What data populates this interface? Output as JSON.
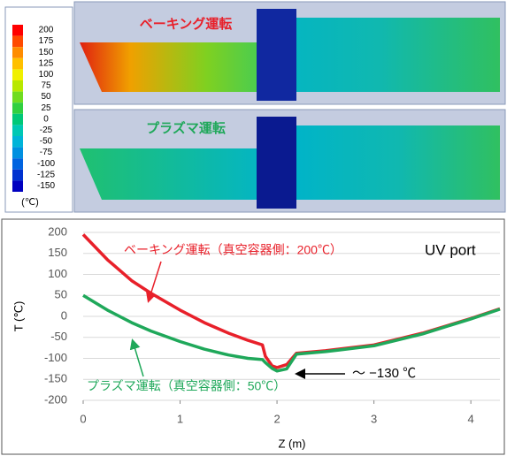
{
  "colorbar": {
    "ticks": [
      200,
      175,
      150,
      125,
      100,
      75,
      50,
      25,
      0,
      -25,
      -50,
      -75,
      -100,
      -125,
      -150
    ],
    "colors": [
      "#ff0000",
      "#ff4a00",
      "#ff8c00",
      "#ffc000",
      "#f0f000",
      "#b8e800",
      "#70dc20",
      "#30d040",
      "#00c878",
      "#00c8b4",
      "#00b4d8",
      "#0090e0",
      "#0064e0",
      "#0032d0",
      "#0000c0"
    ],
    "unit": "(℃)"
  },
  "panels": [
    {
      "label": "ベーキング運転"
    },
    {
      "label": "プラズマ運転"
    }
  ],
  "chart_data": {
    "type": "line",
    "x": [
      0,
      0.25,
      0.5,
      0.7,
      1.0,
      1.25,
      1.5,
      1.7,
      1.85,
      1.88,
      1.95,
      2.0,
      2.1,
      2.2,
      2.5,
      3.0,
      3.5,
      4.0,
      4.3
    ],
    "series": [
      {
        "name": "ベーキング運転（真空容器側：200℃）",
        "color": "#e8202a",
        "values": [
          195,
          135,
          85,
          55,
          15,
          -15,
          -40,
          -57,
          -68,
          -95,
          -118,
          -122,
          -115,
          -88,
          -82,
          -68,
          -40,
          -5,
          18
        ]
      },
      {
        "name": "プラズマ運転（真空容器側：50℃）",
        "color": "#1fa85a",
        "values": [
          50,
          15,
          -15,
          -35,
          -60,
          -78,
          -92,
          -100,
          -103,
          -110,
          -124,
          -130,
          -125,
          -90,
          -84,
          -70,
          -42,
          -6,
          17
        ]
      }
    ],
    "annotations": [
      "UV port",
      "～ −130 ℃"
    ],
    "xlabel": "Z (m)",
    "ylabel": "T (℃)",
    "xlim": [
      0,
      4.3
    ],
    "ylim": [
      -200,
      200
    ],
    "xticks": [
      0,
      1,
      2,
      3,
      4
    ],
    "yticks": [
      200,
      150,
      100,
      50,
      0,
      -50,
      -100,
      -150,
      -200
    ],
    "grid": true
  }
}
